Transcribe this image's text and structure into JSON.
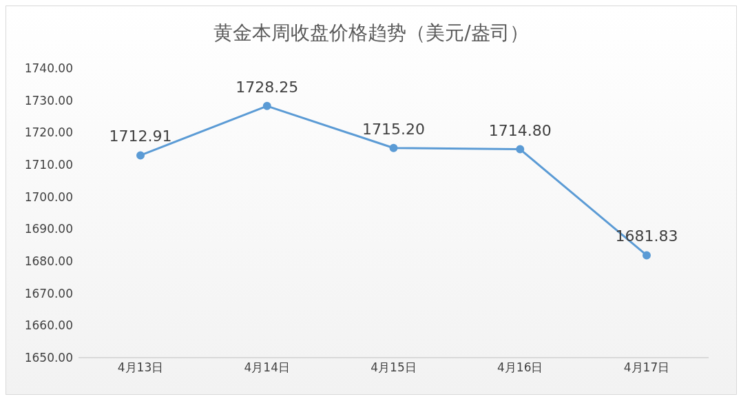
{
  "chart_data": {
    "type": "line",
    "title": "黄金本周收盘价格趋势（美元/盎司）",
    "categories": [
      "4月13日",
      "4月14日",
      "4月15日",
      "4月16日",
      "4月17日"
    ],
    "series": [
      {
        "color": "#5b9bd5",
        "values": [
          1712.91,
          1728.25,
          1715.2,
          1714.8,
          1681.83
        ]
      }
    ],
    "value_labels": [
      "1712.91",
      "1728.25",
      "1715.20",
      "1714.80",
      "1681.83"
    ],
    "ylim": [
      1650,
      1740
    ],
    "yticks": [
      {
        "value": 1650,
        "label": "1650.00"
      },
      {
        "value": 1660,
        "label": "1660.00"
      },
      {
        "value": 1670,
        "label": "1670.00"
      },
      {
        "value": 1680,
        "label": "1680.00"
      },
      {
        "value": 1690,
        "label": "1690.00"
      },
      {
        "value": 1700,
        "label": "1700.00"
      },
      {
        "value": 1710,
        "label": "1710.00"
      },
      {
        "value": 1720,
        "label": "1720.00"
      },
      {
        "value": 1730,
        "label": "1730.00"
      },
      {
        "value": 1740,
        "label": "1740.00"
      }
    ],
    "marker": "circle",
    "line_style": "solid",
    "grid": false
  }
}
